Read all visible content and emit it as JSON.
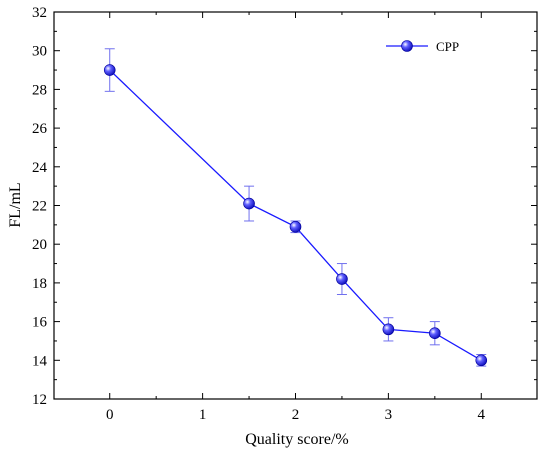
{
  "chart_data": {
    "type": "line",
    "title": "",
    "xlabel": "Quality score/%",
    "ylabel": "FL/mL",
    "xlim": [
      -0.6,
      4.6
    ],
    "ylim": [
      12,
      32
    ],
    "xticks": [
      0,
      1,
      2,
      3,
      4
    ],
    "yticks": [
      12,
      14,
      16,
      18,
      20,
      22,
      24,
      26,
      28,
      30,
      32
    ],
    "grid": false,
    "legend_position": "top-right",
    "series": [
      {
        "name": "CPP",
        "color": "#1a1aff",
        "error_color": "#7070ee",
        "marker": "circle",
        "x": [
          0,
          1.5,
          2,
          2.5,
          3,
          3.5,
          4
        ],
        "y": [
          29.0,
          22.1,
          20.9,
          18.2,
          15.6,
          15.4,
          14.0
        ],
        "error": [
          1.1,
          0.9,
          0.3,
          0.8,
          0.6,
          0.6,
          0.3
        ]
      }
    ]
  }
}
